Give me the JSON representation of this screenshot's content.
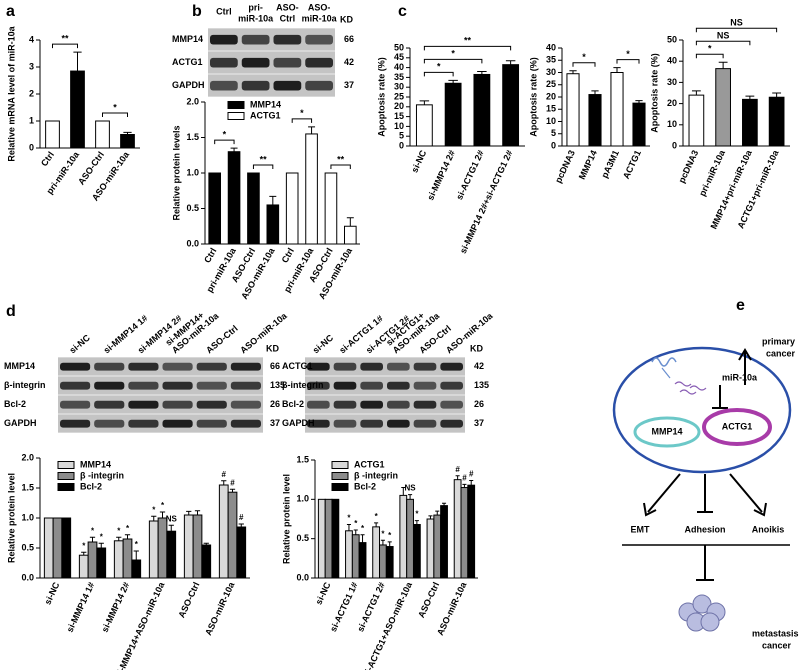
{
  "panel_labels": [
    "a",
    "b",
    "c",
    "d",
    "e"
  ],
  "blots": [
    {
      "columns": [
        [
          "Ctrl"
        ],
        [
          "pri-",
          "miR-10a"
        ],
        [
          "ASO-",
          "Ctrl"
        ],
        [
          "ASO-",
          "miR-10a"
        ]
      ],
      "unit": "KD",
      "rows": [
        {
          "name": "MMP14",
          "kd": 66
        },
        {
          "name": "ACTG1",
          "kd": 42
        },
        {
          "name": "GAPDH",
          "kd": 37
        }
      ]
    },
    {
      "columns": [
        [
          "si-NC"
        ],
        [
          "si-MMP14 1#"
        ],
        [
          "si-MMP14 2#"
        ],
        [
          "si-MMP14+",
          "ASO-miR-10a"
        ],
        [
          "ASO-Ctrl"
        ],
        [
          "ASO-miR-10a"
        ]
      ],
      "unit": "KD",
      "rows": [
        {
          "name": "MMP14",
          "kd": 66
        },
        {
          "name": "β-integrin",
          "kd": 135
        },
        {
          "name": "Bcl-2",
          "kd": 26
        },
        {
          "name": "GAPDH",
          "kd": 37
        }
      ]
    },
    {
      "columns": [
        [
          "si-NC"
        ],
        [
          "si-ACTG1 1#"
        ],
        [
          "si-ACTG1 2#"
        ],
        [
          "si-ACTG1+",
          "ASO-miR-10a"
        ],
        [
          "ASO-Ctrl"
        ],
        [
          "ASO-miR-10a"
        ]
      ],
      "unit": "KD",
      "rows": [
        {
          "name": "ACTG1",
          "kd": 42
        },
        {
          "name": "β-integrin",
          "kd": 135
        },
        {
          "name": "Bcl-2",
          "kd": 26
        },
        {
          "name": "GAPDH",
          "kd": 37
        }
      ]
    }
  ],
  "chart_data": [
    {
      "type": "bar",
      "ylabel": "Relative mRNA level of miR-10a",
      "categories": [
        "Ctrl",
        "pri-miR-10a",
        "ASO-Ctrl",
        "ASO-miR-10a"
      ],
      "values": [
        1,
        2.85,
        1,
        0.5
      ],
      "errors": [
        null,
        0.7,
        null,
        0.08
      ],
      "colors": [
        "#ffffff",
        "#000000",
        "#ffffff",
        "#000000"
      ],
      "ylim": [
        0,
        4
      ],
      "yticks": [
        0,
        1,
        2,
        3,
        4
      ],
      "brackets": [
        {
          "label": "**",
          "between": [
            0,
            1
          ]
        },
        {
          "label": "*",
          "between": [
            2,
            3
          ]
        }
      ]
    },
    {
      "type": "bar",
      "ylabel": "Relative protein levels",
      "categories": [
        "Ctrl",
        "pri-miR-10a",
        "ASO-Ctrl",
        "ASO-miR-10a",
        "Ctrl",
        "pri-miR-10a",
        "ASO-Ctrl",
        "ASO-miR-10a"
      ],
      "series": [
        {
          "name": "MMP14",
          "color": "#000000",
          "values": [
            1.0,
            1.3,
            1.0,
            0.55,
            null,
            null,
            null,
            null
          ],
          "errors": [
            null,
            0.05,
            null,
            0.12,
            null,
            null,
            null,
            null
          ]
        },
        {
          "name": "ACTG1",
          "color": "#ffffff",
          "values": [
            null,
            null,
            null,
            null,
            1.0,
            1.55,
            1.0,
            0.25
          ],
          "errors": [
            null,
            null,
            null,
            null,
            null,
            0.1,
            null,
            0.12
          ]
        }
      ],
      "ylim": [
        0,
        2
      ],
      "yticks": [
        {
          "value": 0,
          "label": "0.0"
        },
        0.5,
        {
          "value": 1,
          "label": "1.0"
        },
        1.5,
        {
          "value": 2,
          "label": "2.0"
        }
      ],
      "brackets": [
        {
          "label": "*",
          "between": [
            0,
            1
          ]
        },
        {
          "label": "**",
          "between": [
            2,
            3
          ]
        },
        {
          "label": "*",
          "between": [
            4,
            5
          ]
        },
        {
          "label": "**",
          "between": [
            6,
            7
          ]
        }
      ]
    },
    {
      "type": "bar",
      "ylabel": "Apoptosis rate (%)",
      "categories": [
        "si-NC",
        "si-MMP14 2#",
        "si-ACTG1 2#",
        "si-MMP14 2#+si-ACTG1 2#"
      ],
      "values": [
        21,
        32,
        36.5,
        41.5
      ],
      "errors": [
        2,
        1.5,
        1.5,
        2
      ],
      "colors": [
        "#ffffff",
        "#000000",
        "#000000",
        "#000000"
      ],
      "ylim": [
        0,
        50
      ],
      "yticks": [
        0,
        5,
        10,
        15,
        20,
        25,
        30,
        35,
        40,
        45,
        50
      ],
      "brackets": [
        {
          "label": "*",
          "between": [
            0,
            1
          ]
        },
        {
          "label": "*",
          "between": [
            0,
            2
          ]
        },
        {
          "label": "**",
          "between": [
            0,
            3
          ]
        }
      ]
    },
    {
      "type": "bar",
      "ylabel": "Apoptosis rate (%)",
      "categories": [
        "pcDNA3",
        "MMP14",
        "pA3M1",
        "ACTG1"
      ],
      "values": [
        29.5,
        21,
        30,
        17.5
      ],
      "errors": [
        1.2,
        1.5,
        2,
        1
      ],
      "colors": [
        "#ffffff",
        "#000000",
        "#ffffff",
        "#000000"
      ],
      "ylim": [
        0,
        40
      ],
      "yticks": [
        0,
        5,
        10,
        15,
        20,
        25,
        30,
        35,
        40
      ],
      "brackets": [
        {
          "label": "*",
          "between": [
            0,
            1
          ]
        },
        {
          "label": "*",
          "between": [
            2,
            3
          ]
        }
      ]
    },
    {
      "type": "bar",
      "ylabel": "Apoptosis rate (%)",
      "categories": [
        "pcDNA3",
        "pri-miR-10a",
        "MMP14+pri-miR-10a",
        "ACTG1+pri-miR-10a"
      ],
      "values": [
        24,
        36.5,
        22,
        23
      ],
      "errors": [
        2,
        3,
        1.5,
        2
      ],
      "colors": [
        "#ffffff",
        "#999999",
        "#000000",
        "#000000"
      ],
      "ylim": [
        0,
        50
      ],
      "yticks": [
        0,
        10,
        20,
        30,
        40,
        50
      ],
      "brackets": [
        {
          "label": "*",
          "between": [
            0,
            1
          ]
        },
        {
          "label": "NS",
          "between": [
            0,
            2
          ]
        },
        {
          "label": "NS",
          "between": [
            0,
            3
          ]
        }
      ]
    },
    {
      "type": "bar",
      "ylabel": "Relative protein level",
      "categories": [
        "si-NC",
        "si-MMP14 1#",
        "si-MMP14 2#",
        "si-MMP14+ASO-miR-10a",
        "ASO-Ctrl",
        "ASO-miR-10a"
      ],
      "series": [
        {
          "name": "MMP14",
          "color": "#d9d9d9",
          "values": [
            1.0,
            0.38,
            0.62,
            0.95,
            1.05,
            1.55
          ],
          "errors": [
            null,
            0.05,
            0.06,
            0.08,
            0.06,
            0.07
          ],
          "marks": [
            null,
            "*",
            "*",
            "*",
            null,
            "#"
          ]
        },
        {
          "name": "β -integrin",
          "color": "#8c8c8c",
          "values": [
            1.0,
            0.6,
            0.65,
            1.0,
            1.05,
            1.43
          ],
          "errors": [
            null,
            0.08,
            0.07,
            0.1,
            0.07,
            0.05
          ],
          "marks": [
            null,
            "*",
            "*",
            "*",
            null,
            "#"
          ]
        },
        {
          "name": "Bcl-2",
          "color": "#000000",
          "values": [
            1.0,
            0.5,
            0.3,
            0.78,
            0.55,
            0.85
          ],
          "errors": [
            null,
            0.08,
            0.15,
            0.1,
            0.03,
            0.05
          ],
          "marks": [
            null,
            "*",
            "*",
            "NS",
            null,
            "#"
          ]
        }
      ],
      "ylim": [
        0,
        2
      ],
      "yticks": [
        {
          "value": 0,
          "label": "0.0"
        },
        0.5,
        {
          "value": 1,
          "label": "1.0"
        },
        1.5,
        {
          "value": 2,
          "label": "2.0"
        }
      ],
      "brackets": []
    },
    {
      "type": "bar",
      "ylabel": "Relative protein level",
      "categories": [
        "si-NC",
        "si-ACTG1 1#",
        "si-ACTG1 2#",
        "si-ACTG1+ASO-miR-10a",
        "ASO-Ctrl",
        "ASO-miR-10a"
      ],
      "series": [
        {
          "name": "ACTG1",
          "color": "#d9d9d9",
          "values": [
            1.0,
            0.6,
            0.65,
            1.05,
            0.75,
            1.25
          ],
          "errors": [
            null,
            0.08,
            0.05,
            0.1,
            0.04,
            0.05
          ],
          "marks": [
            null,
            "*",
            "*",
            null,
            null,
            "#"
          ]
        },
        {
          "name": "β -integrin",
          "color": "#8c8c8c",
          "values": [
            1.0,
            0.55,
            0.42,
            1.0,
            0.8,
            1.15
          ],
          "errors": [
            null,
            0.06,
            0.06,
            0.06,
            0.05,
            0.04
          ],
          "marks": [
            null,
            "*",
            "*",
            "NS",
            null,
            "#"
          ]
        },
        {
          "name": "Bcl-2",
          "color": "#000000",
          "values": [
            1.0,
            0.45,
            0.4,
            0.68,
            0.92,
            1.18
          ],
          "errors": [
            null,
            0.1,
            0.06,
            0.05,
            0.03,
            0.06
          ],
          "marks": [
            null,
            "*",
            "*",
            "*",
            null,
            "#"
          ]
        }
      ],
      "ylim": [
        0,
        1.5
      ],
      "yticks": [
        {
          "value": 0,
          "label": "0.0"
        },
        0.5,
        {
          "value": 1,
          "label": "1.0"
        },
        1.5
      ],
      "brackets": []
    }
  ],
  "diagram": {
    "primary_cancer": [
      "primary",
      "cancer"
    ],
    "mirna": "miR-10a",
    "mmp14": "MMP14",
    "actg1": "ACTG1",
    "emt": "EMT",
    "adhesion": "Adhesion",
    "anoikis": "Anoikis",
    "metastasis_cancer": [
      "metastasis",
      "cancer"
    ]
  }
}
